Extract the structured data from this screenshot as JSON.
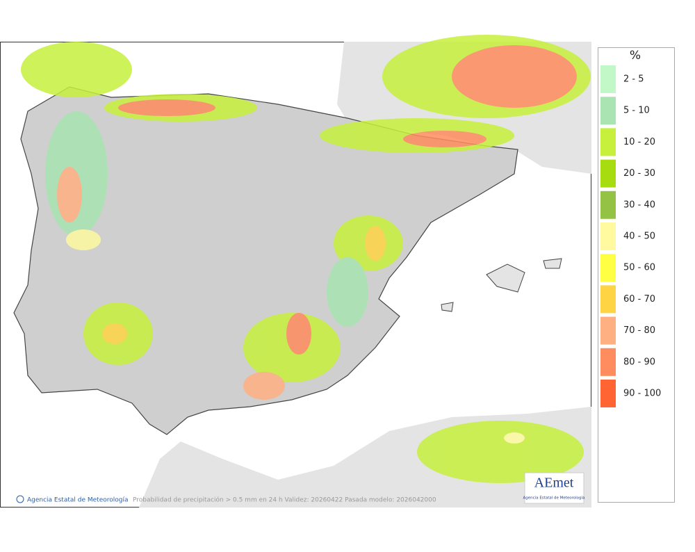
{
  "map": {
    "footer": {
      "agency": "Agencia Estatal de Meteorología",
      "caption": "Probabilidad de precipitación > 0.5 mm en 24 h Validez: 20260422 Pasada modelo: 2026042000"
    },
    "logo": {
      "name": "AEmet",
      "subtitle": "Agencia Estatal de Meteorología"
    },
    "legend": {
      "unit": "%",
      "items": [
        {
          "label": "2 - 5",
          "color": "#c2f7c8"
        },
        {
          "label": "5 - 10",
          "color": "#a9e4b2"
        },
        {
          "label": "10 - 20",
          "color": "#c6f03c"
        },
        {
          "label": "20 - 30",
          "color": "#a6dc10"
        },
        {
          "label": "30 - 40",
          "color": "#94c244"
        },
        {
          "label": "40 - 50",
          "color": "#fffaa0"
        },
        {
          "label": "50 - 60",
          "color": "#ffff44"
        },
        {
          "label": "60 - 70",
          "color": "#ffd444"
        },
        {
          "label": "70 - 80",
          "color": "#ffb082"
        },
        {
          "label": "80 - 90",
          "color": "#ff8c5e"
        },
        {
          "label": "90 - 100",
          "color": "#ff6432"
        }
      ]
    }
  }
}
